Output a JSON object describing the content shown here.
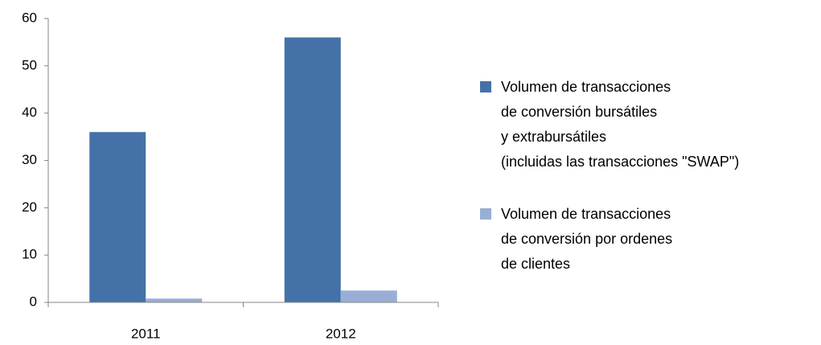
{
  "chart_data": {
    "type": "bar",
    "categories": [
      "2011",
      "2012"
    ],
    "series": [
      {
        "name": "Volumen de transacciones\nde conversión bursátiles\ny extrabursátiles\n(incluidas las transacciones \"SWAP\")",
        "color": "#4472a8",
        "values": [
          36,
          56
        ]
      },
      {
        "name": "Volumen de transacciones\nde conversión por ordenes\nde clientes",
        "color": "#98aed6",
        "values": [
          0.8,
          2.5
        ]
      }
    ],
    "ylim": [
      0,
      60
    ],
    "yticks": [
      0,
      10,
      20,
      30,
      40,
      50,
      60
    ],
    "grid": false,
    "legend": "right"
  }
}
